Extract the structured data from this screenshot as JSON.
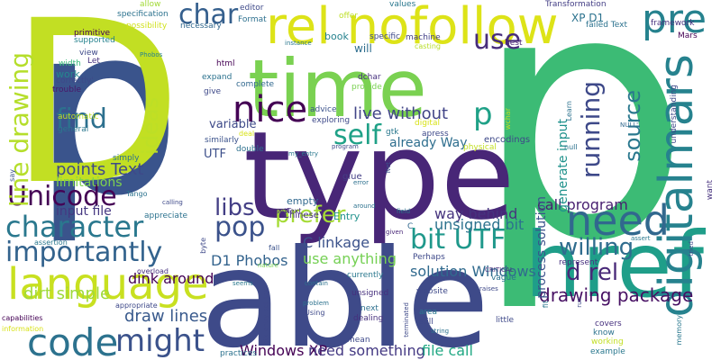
{
  "words": [
    {
      "id": "p1",
      "text": "p",
      "color": "#3a548c"
    },
    {
      "id": "p2",
      "text": "p",
      "color": "#3cbb75"
    },
    {
      "id": "D",
      "text": "D",
      "color": "#c2df23"
    },
    {
      "id": "able",
      "text": "able",
      "color": "#3e4a89"
    },
    {
      "id": "type",
      "text": "type",
      "color": "#482677"
    },
    {
      "id": "time",
      "text": "time",
      "color": "#7ad151"
    },
    {
      "id": "href",
      "text": "href",
      "color": "#1f9e89"
    },
    {
      "id": "rel_nofollow",
      "text": "rel nofollow",
      "color": "#dde318"
    },
    {
      "id": "language",
      "text": "language",
      "color": "#c8e020"
    },
    {
      "id": "digitalmars",
      "text": "digitalmars",
      "color": "#26828e"
    },
    {
      "id": "need",
      "text": "need",
      "color": "#31688e"
    },
    {
      "id": "code",
      "text": "code",
      "color": "#2c728e"
    },
    {
      "id": "character",
      "text": "character",
      "color": "#2a788e"
    },
    {
      "id": "Unicode",
      "text": "Unicode",
      "color": "#440154"
    },
    {
      "id": "importantly",
      "text": "importantly",
      "color": "#33638d"
    },
    {
      "id": "pre",
      "text": "pre",
      "color": "#26828e"
    },
    {
      "id": "might",
      "text": "might",
      "color": "#3b528b"
    },
    {
      "id": "nice",
      "text": "nice",
      "color": "#440154"
    },
    {
      "id": "bit_UTF",
      "text": "bit UTF",
      "color": "#1f988b"
    },
    {
      "id": "use",
      "text": "use",
      "color": "#472d7b"
    },
    {
      "id": "find",
      "text": "find",
      "color": "#2d708e"
    },
    {
      "id": "char",
      "text": "char",
      "color": "#355f8d"
    },
    {
      "id": "line_drawing",
      "text": "line drawing",
      "color": "#b5de2b"
    },
    {
      "id": "running",
      "text": "running",
      "color": "#3e4989"
    },
    {
      "id": "self",
      "text": "self",
      "color": "#1fa187"
    },
    {
      "id": "p_small",
      "text": "p",
      "color": "#1fa187"
    },
    {
      "id": "pop",
      "text": "pop",
      "color": "#3b528b"
    },
    {
      "id": "libs",
      "text": "libs",
      "color": "#433e85"
    },
    {
      "id": "prefer",
      "text": "prefer",
      "color": "#a5db36"
    },
    {
      "id": "ideas",
      "text": "ideas",
      "color": "#bddf26"
    },
    {
      "id": "source",
      "text": "source",
      "color": "#2a788e"
    },
    {
      "id": "d_rel",
      "text": "d rel",
      "color": "#482878"
    },
    {
      "id": "willing",
      "text": "willing",
      "color": "#2f6c8e"
    },
    {
      "id": "drawing_package",
      "text": "drawing package",
      "color": "#471063"
    },
    {
      "id": "points_Text",
      "text": "points Text",
      "color": "#3e4989"
    },
    {
      "id": "live_without",
      "text": "live without",
      "color": "#414487"
    },
    {
      "id": "draw_lines",
      "text": "draw lines",
      "color": "#38598c"
    },
    {
      "id": "dirt_simple",
      "text": "dirt simple",
      "color": "#9fda3a"
    },
    {
      "id": "Windows_XP",
      "text": "Windows XP",
      "color": "#440154"
    },
    {
      "id": "need_something",
      "text": "need something",
      "color": "#443983"
    },
    {
      "id": "file_call",
      "text": "file call",
      "color": "#22a884"
    },
    {
      "id": "call_program",
      "text": "call program",
      "color": "#481f70"
    },
    {
      "id": "way_behind",
      "text": "way behind",
      "color": "#46337e"
    },
    {
      "id": "unsigned_bit",
      "text": "unsigned bit",
      "color": "#2c728e"
    },
    {
      "id": "solution_Windows",
      "text": "solution Windows",
      "color": "#306a8e"
    },
    {
      "id": "use_anything",
      "text": "use anything",
      "color": "#75d054"
    },
    {
      "id": "D1_Phobos",
      "text": "D1 Phobos",
      "color": "#33638d"
    },
    {
      "id": "C_linkage",
      "text": "C linkage",
      "color": "#3b528b"
    },
    {
      "id": "dink_around",
      "text": "dink around",
      "color": "#440154"
    },
    {
      "id": "input_file",
      "text": "input file",
      "color": "#453781"
    },
    {
      "id": "limitations",
      "text": "limitations",
      "color": "#7fd34e"
    },
    {
      "id": "process_solution",
      "text": "process solution",
      "color": "#3b528b"
    },
    {
      "id": "generate_input",
      "text": "generate input",
      "color": "#20928c"
    },
    {
      "id": "already_Way",
      "text": "already Way",
      "color": "#2e6e8e"
    },
    {
      "id": "variable",
      "text": "variable",
      "color": "#3e4a89"
    },
    {
      "id": "UTF",
      "text": "UTF",
      "color": "#3c4f8a"
    },
    {
      "id": "Entry",
      "text": "Entry",
      "color": "#20928c"
    },
    {
      "id": "empty",
      "text": "empty",
      "color": "#31688e"
    },
    {
      "id": "Chinese",
      "text": "Chinese",
      "color": "#46307e"
    },
    {
      "id": "book",
      "text": "book",
      "color": "#26828e"
    },
    {
      "id": "will",
      "text": "will",
      "color": "#2e6e8e"
    },
    {
      "id": "glue",
      "text": "glue",
      "color": "#433e85"
    },
    {
      "id": "encodings",
      "text": "encodings",
      "color": "#3e4989"
    },
    {
      "id": "XP_D1",
      "text": "XP D1",
      "color": "#2c728e"
    },
    {
      "id": "Transformation",
      "text": "Transformation",
      "color": "#433e85"
    },
    {
      "id": "values",
      "text": "values",
      "color": "#2a788e"
    },
    {
      "id": "offer",
      "text": "offer",
      "color": "#bddf26"
    },
    {
      "id": "editor",
      "text": "editor",
      "color": "#3e4989"
    },
    {
      "id": "Format",
      "text": "Format",
      "color": "#2d708e"
    },
    {
      "id": "failed_Text",
      "text": "failed Text",
      "color": "#2c728e"
    },
    {
      "id": "framework",
      "text": "framework",
      "color": "#46307e"
    },
    {
      "id": "Mars",
      "text": "Mars",
      "color": "#440154"
    },
    {
      "id": "machine",
      "text": "machine",
      "color": "#424086"
    },
    {
      "id": "casting",
      "text": "casting",
      "color": "#b8de29"
    },
    {
      "id": "specific",
      "text": "specific",
      "color": "#3e4989"
    },
    {
      "id": "best",
      "text": "best",
      "color": "#482173"
    },
    {
      "id": "necessary",
      "text": "necessary",
      "color": "#31688e"
    },
    {
      "id": "allow",
      "text": "allow",
      "color": "#a2da37"
    },
    {
      "id": "specification",
      "text": "specification",
      "color": "#2c728e"
    },
    {
      "id": "possibility",
      "text": "possibility",
      "color": "#d0e11c"
    },
    {
      "id": "primitive",
      "text": "primitive",
      "color": "#440154"
    },
    {
      "id": "supported",
      "text": "supported",
      "color": "#26828e"
    },
    {
      "id": "view",
      "text": "view",
      "color": "#3e4989"
    },
    {
      "id": "Let",
      "text": "Let",
      "color": "#46307e"
    },
    {
      "id": "width",
      "text": "width",
      "color": "#37b878"
    },
    {
      "id": "work",
      "text": "work",
      "color": "#24878e"
    },
    {
      "id": "correctly",
      "text": "correctly'",
      "color": "#3e4989"
    },
    {
      "id": "trouble",
      "text": "trouble",
      "color": "#48186a"
    },
    {
      "id": "automatic",
      "text": "automatic",
      "color": "#c2df23"
    },
    {
      "id": "general",
      "text": "general",
      "color": "#2a788e"
    },
    {
      "id": "html",
      "text": "html",
      "color": "#440154"
    },
    {
      "id": "expand",
      "text": "expand",
      "color": "#2c728e"
    },
    {
      "id": "give",
      "text": "give",
      "color": "#3e4989"
    },
    {
      "id": "complete",
      "text": "complete",
      "color": "#31688e"
    },
    {
      "id": "dchar",
      "text": "dchar",
      "color": "#46307e"
    },
    {
      "id": "provide",
      "text": "provide",
      "color": "#7ad151"
    },
    {
      "id": "advice",
      "text": "advice",
      "color": "#3b528b"
    },
    {
      "id": "exploring",
      "text": "exploring",
      "color": "#3e4989"
    },
    {
      "id": "digital",
      "text": "digital",
      "color": "#d8e219"
    },
    {
      "id": "apress",
      "text": "apress",
      "color": "#3e4989"
    },
    {
      "id": "gtk",
      "text": "gtk",
      "color": "#2a788e"
    },
    {
      "id": "physical",
      "text": "physical",
      "color": "#c2df23"
    },
    {
      "id": "wchar",
      "text": "wchar",
      "color": "#c2df23"
    },
    {
      "id": "Learn",
      "text": "Learn",
      "color": "#2c728e"
    },
    {
      "id": "understanding",
      "text": "understanding",
      "color": "#3e4989"
    },
    {
      "id": "NULL",
      "text": "NULL'",
      "color": "#31688e"
    },
    {
      "id": "null",
      "text": "null",
      "color": "#2c728e"
    },
    {
      "id": "want",
      "text": "want",
      "color": "#46307e"
    },
    {
      "id": "Phobos",
      "text": "Phobos",
      "color": "#26828e"
    },
    {
      "id": "instance",
      "text": "instance",
      "color": "#2a788e"
    },
    {
      "id": "deal",
      "text": "deal",
      "color": "#d8e219"
    },
    {
      "id": "similarly",
      "text": "similarly",
      "color": "#3b528b"
    },
    {
      "id": "double",
      "text": "double",
      "color": "#2d708e"
    },
    {
      "id": "program",
      "text": "program",
      "color": "#3e4989"
    },
    {
      "id": "my_entry",
      "text": "my_entry",
      "color": "#2a788e"
    },
    {
      "id": "error",
      "text": "error",
      "color": "#2d708e"
    },
    {
      "id": "Net",
      "text": "Net",
      "color": "#3b528b"
    },
    {
      "id": "field",
      "text": "field",
      "color": "#2a788e"
    },
    {
      "id": "around",
      "text": "around",
      "color": "#2c728e"
    },
    {
      "id": "given",
      "text": "given",
      "color": "#482677"
    },
    {
      "id": "C",
      "text": "C",
      "color": "#31688e"
    },
    {
      "id": "say",
      "text": "say",
      "color": "#3b528b"
    },
    {
      "id": "simply",
      "text": "simply",
      "color": "#2d708e"
    },
    {
      "id": "Tango",
      "text": "Tango",
      "color": "#2c728e"
    },
    {
      "id": "calling",
      "text": "calling",
      "color": "#3e4989"
    },
    {
      "id": "appreciate",
      "text": "appreciate",
      "color": "#2c728e"
    },
    {
      "id": "setText",
      "text": "setText",
      "color": "#46307e"
    },
    {
      "id": "assertion",
      "text": "assertion",
      "color": "#2a788e"
    },
    {
      "id": "byte",
      "text": "byte",
      "color": "#3e4989"
    },
    {
      "id": "capabilities",
      "text": "capabilities",
      "color": "#440154"
    },
    {
      "id": "appropriate",
      "text": "appropriate",
      "color": "#3e4989"
    },
    {
      "id": "overload",
      "text": "overload",
      "color": "#46307e"
    },
    {
      "id": "fall",
      "text": "fall",
      "color": "#3b528b"
    },
    {
      "id": "nature",
      "text": "nature",
      "color": "#7ad151"
    },
    {
      "id": "Perhaps",
      "text": "Perhaps",
      "color": "#3e4989"
    },
    {
      "id": "represent",
      "text": "represent",
      "color": "#46307e"
    },
    {
      "id": "assert",
      "text": "assert",
      "color": "#2a788e"
    },
    {
      "id": "tried",
      "text": "tried",
      "color": "#3e4989"
    },
    {
      "id": "CRITICAL",
      "text": "CRITICAL",
      "color": "#46307e"
    },
    {
      "id": "vague",
      "text": "vague",
      "color": "#2c728e"
    },
    {
      "id": "currently",
      "text": "currently",
      "color": "#2a788e"
    },
    {
      "id": "contain",
      "text": "contain",
      "color": "#2c728e"
    },
    {
      "id": "unsigned",
      "text": "unsigned",
      "color": "#46307e"
    },
    {
      "id": "website",
      "text": "website",
      "color": "#3e4989"
    },
    {
      "id": "raises",
      "text": "raises",
      "color": "#3e4989"
    },
    {
      "id": "fit",
      "text": "fit",
      "color": "#2a788e"
    },
    {
      "id": "run",
      "text": "run",
      "color": "#3e4989"
    },
    {
      "id": "seems",
      "text": "seems",
      "color": "#2a788e"
    },
    {
      "id": "gtk_entry_set_text",
      "text": "gtk_entry_set_text",
      "color": "#3e4989"
    },
    {
      "id": "problem",
      "text": "problem",
      "color": "#2c728e"
    },
    {
      "id": "Using",
      "text": "Using",
      "color": "#3e4989"
    },
    {
      "id": "next",
      "text": "next",
      "color": "#2d708e"
    },
    {
      "id": "dealing",
      "text": "dealing",
      "color": "#46307e"
    },
    {
      "id": "area",
      "text": "area",
      "color": "#2a788e"
    },
    {
      "id": "still",
      "text": "still",
      "color": "#3e4989"
    },
    {
      "id": "terminated",
      "text": "terminated",
      "color": "#3e4989"
    },
    {
      "id": "string",
      "text": "string",
      "color": "#2c728e"
    },
    {
      "id": "little",
      "text": "little",
      "color": "#3e4989"
    },
    {
      "id": "covers",
      "text": "covers",
      "color": "#46307e"
    },
    {
      "id": "know",
      "text": "know",
      "color": "#2c728e"
    },
    {
      "id": "working",
      "text": "working",
      "color": "#c2df23"
    },
    {
      "id": "example",
      "text": "example",
      "color": "#2a788e"
    },
    {
      "id": "memory",
      "text": "memory",
      "color": "#2a788e"
    },
    {
      "id": "information",
      "text": "information",
      "color": "#d8e219"
    },
    {
      "id": "practices",
      "text": "practices",
      "color": "#2c728e"
    },
    {
      "id": "mean",
      "text": "mean",
      "color": "#3e4989"
    }
  ]
}
